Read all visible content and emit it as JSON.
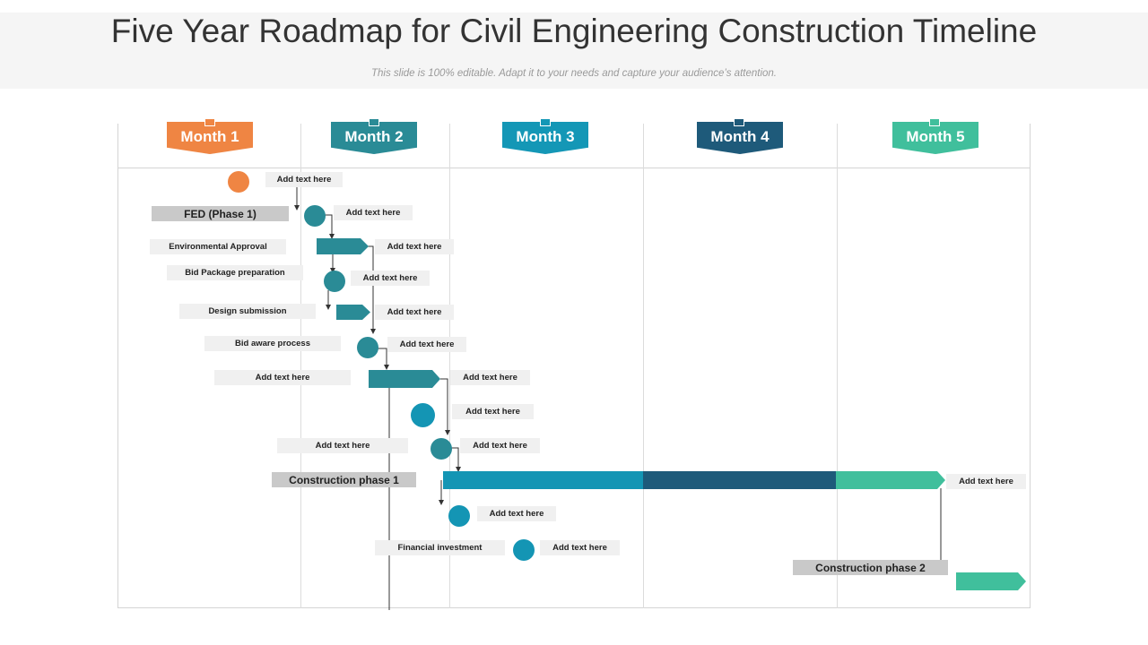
{
  "title": "Five Year Roadmap for Civil Engineering Construction Timeline",
  "subtitle": "This slide is 100% editable. Adapt it to your needs and capture your audience’s attention.",
  "colors": {
    "orange": "#ef8543",
    "teal": "#2a8b96",
    "blue": "#1495b4",
    "navy": "#1e5a7a",
    "green": "#40bf9c"
  },
  "months": [
    {
      "label": "Month 1",
      "color": "#ef8543"
    },
    {
      "label": "Month 2",
      "color": "#2a8b96"
    },
    {
      "label": "Month 3",
      "color": "#1497b6"
    },
    {
      "label": "Month 4",
      "color": "#1e5a7a"
    },
    {
      "label": "Month 5",
      "color": "#40bf9c"
    }
  ],
  "left_labels": {
    "fed": "FED  (Phase 1)",
    "env": "Environmental Approval",
    "bid_pkg": "Bid Package preparation",
    "design": "Design submission",
    "bid_aware": "Bid aware process",
    "row7": "Add text here",
    "row9": "Add text here",
    "construction1": "Construction phase 1",
    "financial": "Financial investment",
    "construction2": "Construction phase 2"
  },
  "placeholder": "Add text here"
}
